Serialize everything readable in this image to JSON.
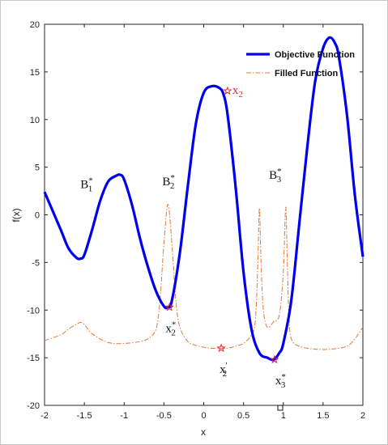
{
  "chart_data": {
    "type": "line",
    "title": "",
    "xlabel": "x",
    "ylabel": "f(x)",
    "xlim": [
      -2,
      2
    ],
    "ylim": [
      -20,
      20
    ],
    "xticks": [
      "-2",
      "-1.5",
      "-1",
      "-0.5",
      "0",
      "0.5",
      "1",
      "1.5",
      "2"
    ],
    "yticks": [
      "-20",
      "-15",
      "-10",
      "-5",
      "0",
      "5",
      "10",
      "15",
      "20"
    ],
    "grid": false,
    "legend_position": "top-right",
    "series": [
      {
        "name": "Objective Function",
        "color": "#0000ee",
        "style": "solid",
        "x": [
          -2.0,
          -1.8,
          -1.7,
          -1.6,
          -1.55,
          -1.5,
          -1.4,
          -1.3,
          -1.2,
          -1.1,
          -1.05,
          -1.0,
          -0.9,
          -0.8,
          -0.7,
          -0.6,
          -0.5,
          -0.45,
          -0.4,
          -0.3,
          -0.2,
          -0.1,
          0.0,
          0.1,
          0.2,
          0.25,
          0.3,
          0.4,
          0.5,
          0.6,
          0.7,
          0.8,
          0.88,
          0.95,
          1.0,
          1.1,
          1.2,
          1.3,
          1.4,
          1.5,
          1.58,
          1.65,
          1.7,
          1.8,
          1.9,
          2.0
        ],
        "y": [
          2.4,
          -1.5,
          -3.5,
          -4.5,
          -4.6,
          -4.2,
          -1.5,
          1.5,
          3.5,
          4.1,
          4.2,
          3.7,
          1.0,
          -2.5,
          -5.5,
          -8.0,
          -9.6,
          -9.7,
          -9.0,
          -4.0,
          3.0,
          9.5,
          12.8,
          13.5,
          13.3,
          12.6,
          10.5,
          3.0,
          -6.0,
          -12.0,
          -14.5,
          -15.0,
          -15.2,
          -14.5,
          -13.5,
          -9.0,
          -1.0,
          7.0,
          14.0,
          17.5,
          18.6,
          18.0,
          16.5,
          10.5,
          2.0,
          -4.4
        ]
      },
      {
        "name": "Filled Function",
        "color": "#e07a3a",
        "style": "dashdot",
        "x": [
          -2.0,
          -1.8,
          -1.7,
          -1.6,
          -1.55,
          -1.5,
          -1.4,
          -1.2,
          -1.0,
          -0.8,
          -0.7,
          -0.6,
          -0.55,
          -0.5,
          -0.45,
          -0.4,
          -0.35,
          -0.3,
          -0.2,
          -0.1,
          0.0,
          0.1,
          0.2,
          0.3,
          0.4,
          0.5,
          0.6,
          0.65,
          0.68,
          0.7,
          0.72,
          0.75,
          0.8,
          0.88,
          0.95,
          1.0,
          1.03,
          1.05,
          1.07,
          1.1,
          1.2,
          1.4,
          1.6,
          1.8,
          1.9,
          2.0
        ],
        "y": [
          -13.2,
          -12.6,
          -12.0,
          -11.5,
          -11.3,
          -11.5,
          -12.5,
          -13.4,
          -13.5,
          -13.3,
          -13.0,
          -12.0,
          -9.0,
          -3.0,
          1.1,
          -3.0,
          -9.0,
          -11.8,
          -13.3,
          -13.7,
          -13.9,
          -14.0,
          -14.0,
          -14.0,
          -13.8,
          -13.5,
          -12.6,
          -11.0,
          -5.0,
          0.7,
          -5.0,
          -10.0,
          -11.8,
          -11.2,
          -10.5,
          -6.0,
          0.8,
          -5.0,
          -10.5,
          -13.0,
          -13.8,
          -14.1,
          -14.1,
          -13.8,
          -13.0,
          -11.8
        ]
      }
    ],
    "legend": [
      {
        "label": "Objective Function",
        "color": "#0000ee",
        "style": "solid"
      },
      {
        "label": "Filled Function",
        "color": "#e07a3a",
        "style": "dashdot"
      }
    ],
    "markers": [
      {
        "x": -0.43,
        "y": -9.7,
        "color": "#e8262a"
      },
      {
        "x": 0.22,
        "y": -14.0,
        "color": "#e8262a"
      },
      {
        "x": 0.89,
        "y": -15.2,
        "color": "#e8262a"
      },
      {
        "x": 0.3,
        "y": 13.0,
        "color": "#e8262a"
      }
    ],
    "annotations": [
      {
        "base": "B",
        "sup": "*",
        "sub": "1",
        "x": -1.55,
        "y": 2.8,
        "color": "#111111"
      },
      {
        "base": "B",
        "sup": "*",
        "sub": "2",
        "x": -0.52,
        "y": 3.1,
        "color": "#111111"
      },
      {
        "base": "B",
        "sup": "*",
        "sub": "3",
        "x": 0.82,
        "y": 3.8,
        "color": "#111111"
      },
      {
        "base": "x",
        "sup": "*",
        "sub": "2",
        "x": -0.48,
        "y": -12.3,
        "color": "#111111"
      },
      {
        "base": "x",
        "sup": "'",
        "sub": "2",
        "x": 0.2,
        "y": -16.6,
        "color": "#111111"
      },
      {
        "base": "x",
        "sup": "*",
        "sub": "3",
        "x": 0.9,
        "y": -17.8,
        "color": "#111111"
      },
      {
        "base": "x",
        "sup": "",
        "sub": "2",
        "x": 0.36,
        "y": 12.7,
        "color": "#e8262a"
      }
    ]
  }
}
